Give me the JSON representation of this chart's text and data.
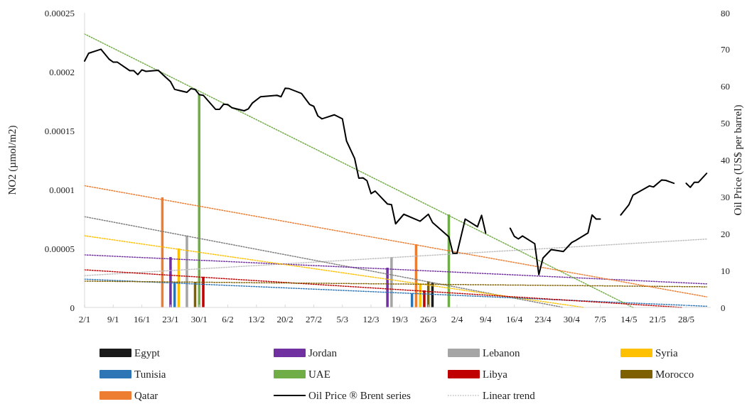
{
  "chart_data": {
    "type": "bar",
    "ylabel": "NO2 (µmol/m2)",
    "y2label": "Oil Price (US$ per barrel)",
    "xlim": [
      "--01-02",
      "--06-03"
    ],
    "xticks": [
      {
        "value": "--01-02",
        "label": "2/1"
      },
      {
        "value": "--01-09",
        "label": "9/1"
      },
      {
        "value": "--01-16",
        "label": "16/1"
      },
      {
        "value": "--01-23",
        "label": "23/1"
      },
      {
        "value": "--01-30",
        "label": "30/1"
      },
      {
        "value": "--02-06",
        "label": "6/2"
      },
      {
        "value": "--02-13",
        "label": "13/2"
      },
      {
        "value": "--02-20",
        "label": "20/2"
      },
      {
        "value": "--02-27",
        "label": "27/2"
      },
      {
        "value": "--03-05",
        "label": "5/3"
      },
      {
        "value": "--03-12",
        "label": "12/3"
      },
      {
        "value": "--03-19",
        "label": "19/3"
      },
      {
        "value": "--03-26",
        "label": "26/3"
      },
      {
        "value": "--04-02",
        "label": "2/4"
      },
      {
        "value": "--04-09",
        "label": "9/4"
      },
      {
        "value": "--04-16",
        "label": "16/4"
      },
      {
        "value": "--04-23",
        "label": "23/4"
      },
      {
        "value": "--04-30",
        "label": "30/4"
      },
      {
        "value": "--05-07",
        "label": "7/5"
      },
      {
        "value": "--05-14",
        "label": "14/5"
      },
      {
        "value": "--05-21",
        "label": "21/5"
      },
      {
        "value": "--05-28",
        "label": "28/5"
      }
    ],
    "ylim": [
      0,
      0.00025
    ],
    "yticks": [
      0,
      {
        "value": 5e-05,
        "label": "0.00005"
      },
      {
        "value": 0.0001,
        "label": "0.0001"
      },
      {
        "value": 0.00015,
        "label": "0.00015"
      },
      {
        "value": 0.0002,
        "label": "0.0002"
      },
      {
        "value": 0.00025,
        "label": "0.00025"
      }
    ],
    "y2lim": [
      0,
      80
    ],
    "y2ticks": [
      0,
      10,
      20,
      30,
      40,
      50,
      60,
      70,
      80
    ],
    "grid": false,
    "legend": "bottom",
    "series": [
      {
        "name": "Egypt",
        "color": "#1a1a1a",
        "type": "bar",
        "x": [
          "--03-27"
        ],
        "values": [
          2.1e-05
        ]
      },
      {
        "name": "Jordan",
        "color": "#7030a0",
        "type": "bar",
        "x": [
          "--01-23",
          "--03-16"
        ],
        "values": [
          4.28e-05,
          3.37e-05
        ]
      },
      {
        "name": "Lebanon",
        "color": "#a5a5a5",
        "type": "bar",
        "x": [
          "--01-27",
          "--03-17"
        ],
        "values": [
          6.1e-05,
          4.28e-05
        ]
      },
      {
        "name": "Syria",
        "color": "#ffc000",
        "type": "bar",
        "x": [
          "--01-25",
          "--03-24"
        ],
        "values": [
          5e-05,
          2e-05
        ]
      },
      {
        "name": "Tunisia",
        "color": "#2e75b6",
        "type": "bar",
        "x": [
          "--01-24",
          "--03-22"
        ],
        "values": [
          2.17e-05,
          1.2e-05
        ]
      },
      {
        "name": "UAE",
        "color": "#70ad47",
        "type": "bar",
        "x": [
          "--01-30",
          "--03-31"
        ],
        "values": [
          0.000181,
          7.89e-05
        ]
      },
      {
        "name": "Libya",
        "color": "#c00000",
        "type": "bar",
        "x": [
          "--01-31",
          "--03-25"
        ],
        "values": [
          2.6e-05,
          1.45e-05
        ]
      },
      {
        "name": "Morocco",
        "color": "#7f6000",
        "type": "bar",
        "x": [
          "--01-29",
          "--03-26"
        ],
        "values": [
          2.17e-05,
          2.2e-05
        ]
      },
      {
        "name": "Qatar",
        "color": "#ed7d31",
        "type": "bar",
        "x": [
          "--01-21",
          "--03-23"
        ],
        "values": [
          9.34e-05,
          5.36e-05
        ]
      },
      {
        "name": "Oil Price ® Brent series",
        "color": "#000000",
        "type": "line",
        "axis": "y2",
        "line_style": "solid",
        "x": [
          "--01-02",
          "--01-03",
          "--01-06",
          "--01-08",
          "--01-09",
          "--01-10",
          "--01-13",
          "--01-14",
          "--01-15",
          "--01-16",
          "--01-17",
          "--01-20",
          "--01-22",
          "--01-23",
          "--01-24",
          "--01-27",
          "--01-28",
          "--01-29",
          "--01-30",
          "--01-31",
          "--02-03",
          "--02-04",
          "--02-05",
          "--02-06",
          "--02-07",
          "--02-10",
          "--02-11",
          "--02-12",
          "--02-14",
          "--02-18",
          "--02-19",
          "--02-20",
          "--02-21",
          "--02-24",
          "--02-25",
          "--02-26",
          "--02-27",
          "--02-28",
          "--02-29",
          "--03-03",
          "--03-05",
          "--03-06",
          "--03-08",
          "--03-09",
          "--03-10",
          "--03-11",
          "--03-12",
          "--03-13",
          "--03-16",
          "--03-17",
          "--03-18",
          "--03-20",
          "--03-24",
          "--03-26",
          "--03-27",
          "--03-31",
          "--04-01",
          "--04-02",
          "--04-04",
          "--04-07",
          "--04-08",
          "--04-09",
          "--04-12",
          "--04-15",
          "--04-16",
          "--04-17",
          "--04-18",
          "--04-21",
          "--04-22",
          "--04-23",
          "--04-25",
          "--04-28",
          "--04-30",
          "--05-01",
          "--05-04",
          "--05-05",
          "--05-06",
          "--05-07",
          "--05-09",
          "--05-12",
          "--05-14",
          "--05-15",
          "--05-19",
          "--05-20",
          "--05-22",
          "--05-23",
          "--05-25",
          "--05-26",
          "--05-28",
          "--05-29",
          "--05-30",
          "--05-31",
          "--06-02"
        ],
        "values": [
          66.9,
          69,
          70.1,
          67.4,
          66.6,
          66.6,
          64.3,
          64.3,
          63.2,
          64.5,
          64.1,
          64.4,
          62.3,
          61.3,
          59.2,
          58.4,
          59.4,
          59.2,
          57.8,
          57.6,
          53.8,
          53.8,
          55.2,
          55.1,
          54.2,
          53.4,
          53.9,
          55.5,
          57.2,
          57.6,
          57.2,
          59.5,
          59.4,
          58.1,
          56.6,
          55.1,
          54.6,
          52,
          51.2,
          52.3,
          51.2,
          45.2,
          40.4,
          35.1,
          35.2,
          34.4,
          30.9,
          31.6,
          28.1,
          27.9,
          22.7,
          25.3,
          23.4,
          25.3,
          23.1,
          19.2,
          14.7,
          14.7,
          24,
          21.9,
          25,
          20.2,
          null,
          21.5,
          19.3,
          18.6,
          19.4,
          17.3,
          8.9,
          13.4,
          15.7,
          15.2,
          17.6,
          18.2,
          20.2,
          25.1,
          24,
          24,
          null,
          25.1,
          27.9,
          30.5,
          33,
          32.7,
          34.6,
          34.5,
          33.7,
          null,
          33.7,
          32.6,
          34,
          34,
          36.4
        ]
      },
      {
        "name": "Linear trend",
        "color": "#bfbfbf",
        "type": "line",
        "line_style": "dotted",
        "x": [
          "--01-02",
          "--06-02"
        ],
        "values": [
          2.7e-05,
          5.8e-05
        ]
      },
      {
        "color": "#7f7f7f",
        "type": "line",
        "line_style": "dotted",
        "x": [
          "--01-02",
          "--04-28"
        ],
        "values": [
          7.7e-05,
          0
        ]
      },
      {
        "color": "#7030a0",
        "type": "line",
        "line_style": "dotted",
        "x": [
          "--01-02",
          "--06-02"
        ],
        "values": [
          4.46e-05,
          2e-05
        ]
      },
      {
        "color": "#ffc000",
        "type": "line",
        "line_style": "dotted",
        "x": [
          "--01-02",
          "--05-03"
        ],
        "values": [
          6.08e-05,
          0
        ]
      },
      {
        "color": "#2e75b6",
        "type": "line",
        "line_style": "dotted",
        "x": [
          "--01-02",
          "--06-02"
        ],
        "values": [
          2.4e-05,
          1e-06
        ]
      },
      {
        "color": "#70ad47",
        "type": "line",
        "line_style": "dotted",
        "x": [
          "--01-02",
          "--05-15"
        ],
        "values": [
          0.000232,
          0
        ]
      },
      {
        "color": "#c00000",
        "type": "line",
        "line_style": "dotted",
        "x": [
          "--01-02",
          "--05-27"
        ],
        "values": [
          3.19e-05,
          0
        ]
      },
      {
        "color": "#7f6000",
        "type": "line",
        "line_style": "dotted",
        "x": [
          "--01-02",
          "--06-02"
        ],
        "values": [
          2.23e-05,
          1.75e-05
        ]
      },
      {
        "color": "#ed7d31",
        "type": "line",
        "line_style": "dotted",
        "x": [
          "--01-02",
          "--06-02"
        ],
        "values": [
          0.0001033,
          9e-06
        ]
      }
    ]
  }
}
